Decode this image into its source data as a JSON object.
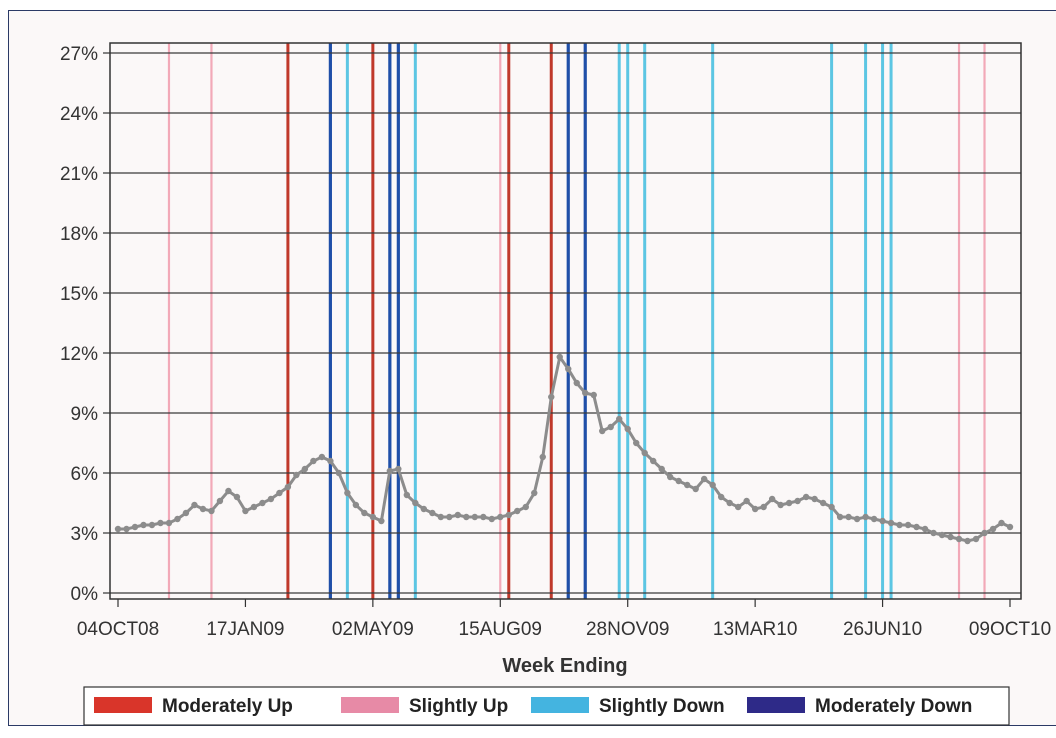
{
  "chart_data": {
    "type": "line",
    "title": "",
    "xlabel": "Week Ending",
    "ylabel": "",
    "ylim": [
      0,
      27
    ],
    "yticks": [
      "0%",
      "3%",
      "6%",
      "9%",
      "12%",
      "15%",
      "18%",
      "21%",
      "24%",
      "27%"
    ],
    "xticks": [
      "04OCT08",
      "17JAN09",
      "02MAY09",
      "15AUG09",
      "28NOV09",
      "13MAR10",
      "26JUN10",
      "09OCT10"
    ],
    "xlim": [
      "2008-10-04",
      "2010-10-09"
    ],
    "grid": "horizontal",
    "legend_position": "bottom",
    "series": [
      {
        "color": "#8c8c8c",
        "points": [
          [
            "2008-10-04",
            3.2
          ],
          [
            "2008-10-11",
            3.2
          ],
          [
            "2008-10-18",
            3.3
          ],
          [
            "2008-10-25",
            3.4
          ],
          [
            "2008-11-01",
            3.4
          ],
          [
            "2008-11-08",
            3.5
          ],
          [
            "2008-11-15",
            3.5
          ],
          [
            "2008-11-22",
            3.7
          ],
          [
            "2008-11-29",
            4.0
          ],
          [
            "2008-12-06",
            4.4
          ],
          [
            "2008-12-13",
            4.2
          ],
          [
            "2008-12-20",
            4.1
          ],
          [
            "2008-12-27",
            4.6
          ],
          [
            "2009-01-03",
            5.1
          ],
          [
            "2009-01-10",
            4.8
          ],
          [
            "2009-01-17",
            4.1
          ],
          [
            "2009-01-24",
            4.3
          ],
          [
            "2009-01-31",
            4.5
          ],
          [
            "2009-02-07",
            4.7
          ],
          [
            "2009-02-14",
            5.0
          ],
          [
            "2009-02-21",
            5.3
          ],
          [
            "2009-02-28",
            5.9
          ],
          [
            "2009-03-07",
            6.2
          ],
          [
            "2009-03-14",
            6.6
          ],
          [
            "2009-03-21",
            6.8
          ],
          [
            "2009-03-28",
            6.6
          ],
          [
            "2009-04-04",
            6.0
          ],
          [
            "2009-04-11",
            5.0
          ],
          [
            "2009-04-18",
            4.4
          ],
          [
            "2009-04-25",
            4.0
          ],
          [
            "2009-05-02",
            3.8
          ],
          [
            "2009-05-09",
            3.6
          ],
          [
            "2009-05-16",
            6.1
          ],
          [
            "2009-05-23",
            6.2
          ],
          [
            "2009-05-30",
            4.9
          ],
          [
            "2009-06-06",
            4.5
          ],
          [
            "2009-06-13",
            4.2
          ],
          [
            "2009-06-20",
            4.0
          ],
          [
            "2009-06-27",
            3.8
          ],
          [
            "2009-07-04",
            3.8
          ],
          [
            "2009-07-11",
            3.9
          ],
          [
            "2009-07-18",
            3.8
          ],
          [
            "2009-07-25",
            3.8
          ],
          [
            "2009-08-01",
            3.8
          ],
          [
            "2009-08-08",
            3.7
          ],
          [
            "2009-08-15",
            3.8
          ],
          [
            "2009-08-22",
            3.9
          ],
          [
            "2009-08-29",
            4.1
          ],
          [
            "2009-09-05",
            4.3
          ],
          [
            "2009-09-12",
            5.0
          ],
          [
            "2009-09-19",
            6.8
          ],
          [
            "2009-09-26",
            9.8
          ],
          [
            "2009-10-03",
            11.8
          ],
          [
            "2009-10-10",
            11.2
          ],
          [
            "2009-10-17",
            10.5
          ],
          [
            "2009-10-24",
            10.0
          ],
          [
            "2009-10-31",
            9.9
          ],
          [
            "2009-11-07",
            8.1
          ],
          [
            "2009-11-14",
            8.3
          ],
          [
            "2009-11-21",
            8.7
          ],
          [
            "2009-11-28",
            8.2
          ],
          [
            "2009-12-05",
            7.5
          ],
          [
            "2009-12-12",
            7.0
          ],
          [
            "2009-12-19",
            6.6
          ],
          [
            "2009-12-26",
            6.2
          ],
          [
            "2010-01-02",
            5.8
          ],
          [
            "2010-01-09",
            5.6
          ],
          [
            "2010-01-16",
            5.4
          ],
          [
            "2010-01-23",
            5.2
          ],
          [
            "2010-01-30",
            5.7
          ],
          [
            "2010-02-06",
            5.4
          ],
          [
            "2010-02-13",
            4.8
          ],
          [
            "2010-02-20",
            4.5
          ],
          [
            "2010-02-27",
            4.3
          ],
          [
            "2010-03-06",
            4.6
          ],
          [
            "2010-03-13",
            4.2
          ],
          [
            "2010-03-20",
            4.3
          ],
          [
            "2010-03-27",
            4.7
          ],
          [
            "2010-04-03",
            4.4
          ],
          [
            "2010-04-10",
            4.5
          ],
          [
            "2010-04-17",
            4.6
          ],
          [
            "2010-04-24",
            4.8
          ],
          [
            "2010-05-01",
            4.7
          ],
          [
            "2010-05-08",
            4.5
          ],
          [
            "2010-05-15",
            4.3
          ],
          [
            "2010-05-22",
            3.8
          ],
          [
            "2010-05-29",
            3.8
          ],
          [
            "2010-06-05",
            3.7
          ],
          [
            "2010-06-12",
            3.8
          ],
          [
            "2010-06-19",
            3.7
          ],
          [
            "2010-06-26",
            3.6
          ],
          [
            "2010-07-03",
            3.5
          ],
          [
            "2010-07-10",
            3.4
          ],
          [
            "2010-07-17",
            3.4
          ],
          [
            "2010-07-24",
            3.3
          ],
          [
            "2010-07-31",
            3.2
          ],
          [
            "2010-08-07",
            3.0
          ],
          [
            "2010-08-14",
            2.9
          ],
          [
            "2010-08-21",
            2.8
          ],
          [
            "2010-08-28",
            2.7
          ],
          [
            "2010-09-04",
            2.6
          ],
          [
            "2010-09-11",
            2.7
          ],
          [
            "2010-09-18",
            3.0
          ],
          [
            "2010-09-25",
            3.2
          ],
          [
            "2010-10-02",
            3.5
          ],
          [
            "2010-10-09",
            3.3
          ]
        ]
      }
    ],
    "bands": [
      {
        "category": "Slightly Up",
        "dates": [
          "2008-11-15",
          "2008-12-20",
          "2010-08-28",
          "2010-09-18",
          "2009-08-15"
        ]
      },
      {
        "category": "Moderately Up",
        "dates": [
          "2009-02-21",
          "2009-05-02",
          "2009-08-22",
          "2009-09-26"
        ]
      },
      {
        "category": "Moderately Down",
        "dates": [
          "2009-03-28",
          "2009-05-16",
          "2009-05-23",
          "2009-10-10",
          "2009-10-24"
        ]
      },
      {
        "category": "Slightly Down",
        "dates": [
          "2009-04-11",
          "2009-06-06",
          "2009-11-21",
          "2009-11-28",
          "2009-12-12",
          "2010-02-06",
          "2010-05-15",
          "2010-06-12",
          "2010-06-26",
          "2010-07-03"
        ]
      }
    ],
    "legend": [
      {
        "label": "Moderately Up",
        "color": "#d9352a"
      },
      {
        "label": "Slightly Up",
        "color": "#e78aa6"
      },
      {
        "label": "Slightly Down",
        "color": "#44b4e0"
      },
      {
        "label": "Moderately Down",
        "color": "#2e2a88"
      }
    ],
    "band_colors": {
      "Moderately Up": "#c0392b",
      "Slightly Up": "#f2a9b8",
      "Slightly Down": "#5cc6e3",
      "Moderately Down": "#1f4fa8"
    }
  }
}
